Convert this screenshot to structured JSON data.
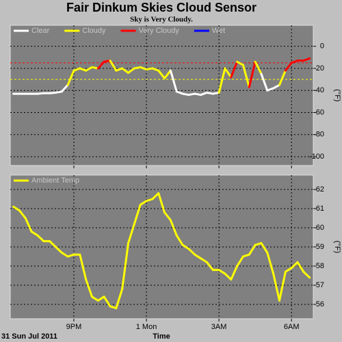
{
  "chart_data": [
    {
      "type": "line",
      "title": "Fair Dinkum Skies Cloud Sensor",
      "subtitle": "Sky is Very Cloudy.",
      "x": [
        0.5,
        0.75,
        1,
        1.25,
        1.5,
        1.75,
        2,
        2.25,
        2.5,
        2.75,
        3,
        3.25,
        3.5,
        3.75,
        4,
        4.25,
        4.5,
        4.75,
        5,
        5.25,
        5.5,
        5.75,
        6,
        6.25,
        6.5,
        6.75,
        7,
        7.25,
        7.5,
        7.75,
        8,
        8.25,
        8.5,
        8.75,
        9,
        9.25,
        9.5,
        9.75,
        10,
        10.25,
        10.5,
        10.75,
        11,
        11.25,
        11.5,
        11.75,
        12,
        12.25,
        12.5,
        12.75
      ],
      "xlim": [
        0.37,
        12.9
      ],
      "xticks": [
        3,
        6,
        9,
        12
      ],
      "ylim": [
        -108,
        19
      ],
      "yticks": [
        0,
        -20,
        -40,
        -60,
        -80,
        -100
      ],
      "y_label": "(°F)",
      "grid": true,
      "thresholds": [
        {
          "value": -15,
          "color": "#ff0000"
        },
        {
          "value": -30,
          "color": "#ffff00"
        }
      ],
      "series": [
        {
          "name": "Clear",
          "color": "#ffffff",
          "values": [
            -43,
            -43,
            -43,
            -43,
            -43,
            -42.5,
            -42.5,
            -42,
            -41,
            -35,
            null,
            null,
            null,
            null,
            null,
            null,
            null,
            null,
            null,
            null,
            null,
            null,
            null,
            null,
            null,
            null,
            null,
            -41,
            -43,
            -44,
            -43,
            -44,
            -42,
            -43,
            -42,
            null,
            null,
            null,
            null,
            null,
            null,
            null,
            -40,
            -38,
            -35,
            null,
            null,
            null,
            null,
            null
          ]
        },
        {
          "name": "Cloudy",
          "color": "#ffff00",
          "values": [
            null,
            null,
            null,
            null,
            null,
            null,
            null,
            null,
            null,
            null,
            -22,
            -20,
            -22,
            -19,
            -20,
            null,
            null,
            -22,
            -20,
            -24,
            -20,
            -19,
            -21,
            -20,
            -22,
            -29,
            -22,
            null,
            null,
            null,
            null,
            null,
            null,
            null,
            null,
            -20,
            -28,
            null,
            -17,
            -37,
            null,
            -25,
            null,
            null,
            null,
            -22,
            null,
            null,
            null,
            null
          ]
        },
        {
          "name": "Very Cloudy",
          "color": "#ff0000",
          "values": [
            null,
            null,
            null,
            null,
            null,
            null,
            null,
            null,
            null,
            null,
            null,
            null,
            null,
            null,
            null,
            -14,
            -13,
            null,
            null,
            null,
            null,
            null,
            null,
            null,
            null,
            null,
            null,
            null,
            null,
            null,
            null,
            null,
            null,
            null,
            null,
            null,
            null,
            -14,
            null,
            null,
            -14,
            null,
            null,
            null,
            null,
            null,
            -15,
            -13,
            -13,
            -11
          ]
        },
        {
          "name": "Wet",
          "color": "#0000ff",
          "values": [
            null,
            null,
            null,
            null,
            null,
            null,
            null,
            null,
            null,
            null,
            null,
            null,
            null,
            null,
            null,
            null,
            null,
            null,
            null,
            null,
            null,
            null,
            null,
            null,
            null,
            null,
            null,
            null,
            null,
            null,
            null,
            null,
            null,
            null,
            null,
            null,
            null,
            null,
            null,
            null,
            null,
            null,
            null,
            null,
            null,
            null,
            null,
            null,
            null,
            null
          ]
        }
      ]
    },
    {
      "type": "line",
      "x_label": "Time",
      "date_label": "31 Sun Jul 2011",
      "x": [
        0.5,
        0.75,
        1,
        1.25,
        1.5,
        1.75,
        2,
        2.25,
        2.5,
        2.75,
        3,
        3.25,
        3.5,
        3.75,
        4,
        4.25,
        4.5,
        4.75,
        5,
        5.25,
        5.5,
        5.75,
        6,
        6.25,
        6.5,
        6.75,
        7,
        7.25,
        7.5,
        7.75,
        8,
        8.25,
        8.5,
        8.75,
        9,
        9.25,
        9.5,
        9.75,
        10,
        10.25,
        10.5,
        10.75,
        11,
        11.25,
        11.5,
        11.75,
        12,
        12.25,
        12.5,
        12.75
      ],
      "xlim": [
        0.37,
        12.9
      ],
      "xticks": [
        {
          "value": 3,
          "label": "9PM"
        },
        {
          "value": 6,
          "label": "1 Mon"
        },
        {
          "value": 9,
          "label": "3AM"
        },
        {
          "value": 12,
          "label": "6AM"
        }
      ],
      "ylim": [
        55.25,
        62.75
      ],
      "yticks": [
        56,
        57,
        58,
        59,
        60,
        61,
        62
      ],
      "y_label": "(°F)",
      "grid": true,
      "series": [
        {
          "name": "Ambient Temp",
          "color": "#ffff00",
          "values": [
            61.1,
            60.9,
            60.5,
            59.8,
            59.6,
            59.3,
            59.3,
            59.0,
            58.7,
            58.5,
            58.6,
            58.6,
            57.3,
            56.4,
            56.2,
            56.4,
            55.9,
            55.8,
            56.8,
            59.2,
            60.2,
            61.2,
            61.4,
            61.5,
            61.8,
            60.8,
            60.4,
            59.6,
            59.1,
            58.9,
            58.6,
            58.4,
            58.2,
            57.8,
            57.8,
            57.6,
            57.3,
            58.0,
            58.5,
            58.6,
            59.1,
            59.2,
            58.7,
            57.6,
            56.2,
            57.7,
            57.9,
            58.2,
            57.7,
            57.4
          ]
        }
      ]
    }
  ]
}
